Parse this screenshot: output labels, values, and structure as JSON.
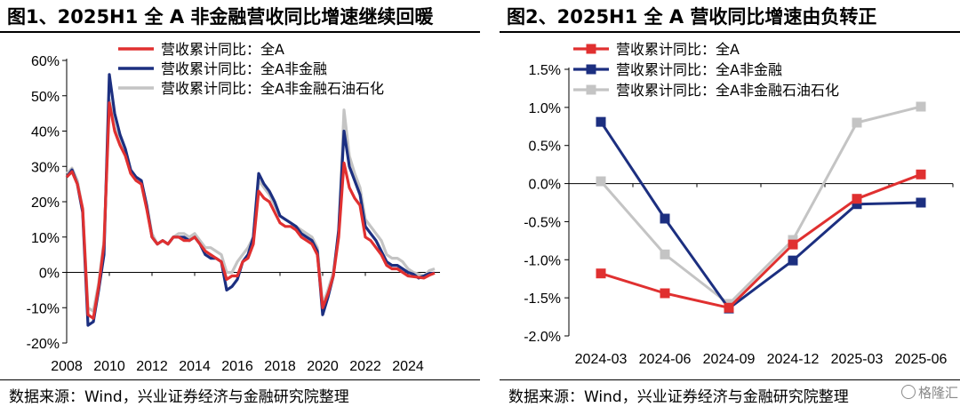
{
  "colors": {
    "red": "#e03030",
    "navy": "#1c2f80",
    "gray": "#c4c4c4"
  },
  "chart_data": [
    {
      "type": "line",
      "title": "图1、2025H1 全 A 非金融营收同比增速继续回暖",
      "source": "数据来源：Wind，兴业证券经济与金融研究院整理",
      "ylim": [
        -20,
        60
      ],
      "yticks": [
        "60%",
        "50%",
        "40%",
        "30%",
        "20%",
        "10%",
        "0%",
        "-10%",
        "-20%"
      ],
      "xlim": [
        2008,
        2025.5
      ],
      "xticks": [
        "2008",
        "2010",
        "2012",
        "2014",
        "2016",
        "2018",
        "2020",
        "2022",
        "2024"
      ],
      "legend_position": "top",
      "series": [
        {
          "name": "营收累计同比：全A",
          "color": "#e03030",
          "x": [
            2008.0,
            2008.25,
            2008.5,
            2008.75,
            2009.0,
            2009.25,
            2009.5,
            2009.75,
            2010.0,
            2010.25,
            2010.5,
            2010.75,
            2011.0,
            2011.25,
            2011.5,
            2011.75,
            2012.0,
            2012.25,
            2012.5,
            2012.75,
            2013.0,
            2013.25,
            2013.5,
            2013.75,
            2014.0,
            2014.25,
            2014.5,
            2014.75,
            2015.0,
            2015.25,
            2015.5,
            2015.75,
            2016.0,
            2016.25,
            2016.5,
            2016.75,
            2017.0,
            2017.25,
            2017.5,
            2017.75,
            2018.0,
            2018.25,
            2018.5,
            2018.75,
            2019.0,
            2019.25,
            2019.5,
            2019.75,
            2020.0,
            2020.25,
            2020.5,
            2020.75,
            2021.0,
            2021.25,
            2021.5,
            2021.75,
            2022.0,
            2022.25,
            2022.5,
            2022.75,
            2023.0,
            2023.25,
            2023.5,
            2023.75,
            2024.0,
            2024.25,
            2024.5,
            2024.75,
            2025.0,
            2025.25
          ],
          "y": [
            27,
            28.5,
            25,
            18,
            -12,
            -13,
            -4,
            8,
            48,
            40,
            36,
            33,
            28,
            26,
            25,
            18,
            10,
            8,
            9,
            8,
            10,
            10,
            9,
            9,
            10,
            8,
            6,
            5,
            4,
            3,
            -2,
            -1,
            -1,
            3,
            4,
            8,
            23,
            21,
            20,
            17,
            14,
            13,
            13,
            12,
            10,
            9,
            8,
            5,
            -10,
            -6,
            -1,
            10,
            31,
            24,
            21,
            19,
            10,
            9,
            7,
            5,
            2,
            1,
            1,
            0,
            -1,
            -1.2,
            -1.4,
            -1.6,
            -0.8,
            -0.2
          ]
        },
        {
          "name": "营收累计同比：全A非金融",
          "color": "#1c2f80",
          "x": [
            2008.0,
            2008.25,
            2008.5,
            2008.75,
            2009.0,
            2009.25,
            2009.5,
            2009.75,
            2010.0,
            2010.25,
            2010.5,
            2010.75,
            2011.0,
            2011.25,
            2011.5,
            2011.75,
            2012.0,
            2012.25,
            2012.5,
            2012.75,
            2013.0,
            2013.25,
            2013.5,
            2013.75,
            2014.0,
            2014.25,
            2014.5,
            2014.75,
            2015.0,
            2015.25,
            2015.5,
            2015.75,
            2016.0,
            2016.25,
            2016.5,
            2016.75,
            2017.0,
            2017.25,
            2017.5,
            2017.75,
            2018.0,
            2018.25,
            2018.5,
            2018.75,
            2019.0,
            2019.25,
            2019.5,
            2019.75,
            2020.0,
            2020.25,
            2020.5,
            2020.75,
            2021.0,
            2021.25,
            2021.5,
            2021.75,
            2022.0,
            2022.25,
            2022.5,
            2022.75,
            2023.0,
            2023.25,
            2023.5,
            2023.75,
            2024.0,
            2024.25,
            2024.5,
            2024.75,
            2025.0,
            2025.25
          ],
          "y": [
            27,
            29,
            25,
            17,
            -15,
            -14,
            -5,
            5,
            56,
            45,
            39,
            35,
            29,
            27,
            26,
            19,
            10,
            8,
            9,
            8,
            10,
            10,
            10,
            9,
            10,
            8,
            5,
            4,
            4,
            3,
            -5,
            -4,
            -2,
            3,
            5,
            10,
            28,
            25,
            23,
            20,
            16,
            15,
            14,
            13,
            11,
            10,
            9,
            6,
            -12,
            -7,
            -1,
            12,
            40,
            30,
            26,
            22,
            13,
            11,
            9,
            6,
            3,
            2,
            2,
            1,
            0,
            -0.5,
            -1.6,
            -1.0,
            -0.3,
            -0.2
          ]
        },
        {
          "name": "营收累计同比：全A非金融石油石化",
          "color": "#c4c4c4",
          "x": [
            2008.0,
            2008.25,
            2008.5,
            2008.75,
            2009.0,
            2009.25,
            2009.5,
            2009.75,
            2010.0,
            2010.25,
            2010.5,
            2010.75,
            2011.0,
            2011.25,
            2011.5,
            2011.75,
            2012.0,
            2012.25,
            2012.5,
            2012.75,
            2013.0,
            2013.25,
            2013.5,
            2013.75,
            2014.0,
            2014.25,
            2014.5,
            2014.75,
            2015.0,
            2015.25,
            2015.5,
            2015.75,
            2016.0,
            2016.25,
            2016.5,
            2016.75,
            2017.0,
            2017.25,
            2017.5,
            2017.75,
            2018.0,
            2018.25,
            2018.5,
            2018.75,
            2019.0,
            2019.25,
            2019.5,
            2019.75,
            2020.0,
            2020.25,
            2020.5,
            2020.75,
            2021.0,
            2021.25,
            2021.5,
            2021.75,
            2022.0,
            2022.25,
            2022.5,
            2022.75,
            2023.0,
            2023.25,
            2023.5,
            2023.75,
            2024.0,
            2024.25,
            2024.5,
            2024.75,
            2025.0,
            2025.25
          ],
          "y": [
            28,
            29.5,
            26,
            18,
            -10,
            -11,
            -3,
            9,
            49,
            41,
            37,
            34,
            29,
            27,
            26,
            19,
            11,
            8,
            9,
            8,
            10,
            11,
            11,
            10,
            11,
            9,
            7,
            7,
            6,
            5,
            0,
            0,
            3,
            5,
            7,
            10,
            26,
            24,
            22,
            19,
            16,
            15,
            14,
            13,
            12,
            11,
            10,
            7,
            -9,
            -5,
            0,
            11,
            46,
            33,
            28,
            24,
            15,
            13,
            11,
            9,
            5,
            4,
            4,
            3,
            1,
            0,
            -0.5,
            -1.0,
            0.5,
            1.0
          ]
        }
      ]
    },
    {
      "type": "line",
      "title": "图2、2025H1 全 A 营收同比增速由负转正",
      "source": "数据来源：Wind，兴业证券经济与金融研究院整理",
      "watermark": "格隆汇",
      "ylim": [
        -2.0,
        1.5
      ],
      "yticks": [
        "1.5%",
        "1.0%",
        "0.5%",
        "0.0%",
        "-0.5%",
        "-1.0%",
        "-1.5%",
        "-2.0%"
      ],
      "categories": [
        "2024-03",
        "2024-06",
        "2024-09",
        "2024-12",
        "2025-03",
        "2025-06"
      ],
      "legend_position": "top",
      "series": [
        {
          "name": "营收累计同比：全A",
          "color": "#e03030",
          "values": [
            -1.18,
            -1.44,
            -1.63,
            -0.8,
            -0.2,
            0.12
          ]
        },
        {
          "name": "营收累计同比：全A非金融",
          "color": "#1c2f80",
          "values": [
            0.81,
            -0.46,
            -1.64,
            -1.01,
            -0.27,
            -0.25
          ]
        },
        {
          "name": "营收累计同比：全A非金融石油石化",
          "color": "#c4c4c4",
          "values": [
            0.03,
            -0.93,
            -1.58,
            -0.74,
            0.8,
            1.01
          ]
        }
      ]
    }
  ]
}
